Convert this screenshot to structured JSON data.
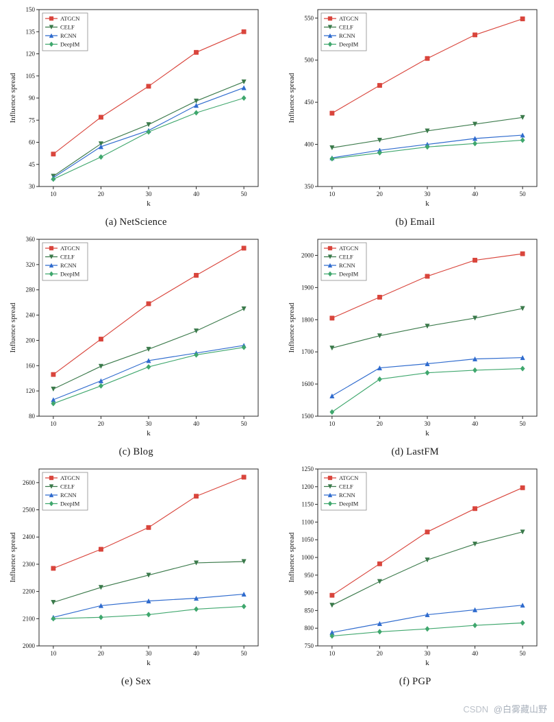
{
  "watermark": {
    "prefix": "CSDN",
    "handle": "@白雾藏山野"
  },
  "series_meta": [
    {
      "name": "ATGCN",
      "color": "#d9453c",
      "marker": "square"
    },
    {
      "name": "CELF",
      "color": "#3b7a4b",
      "marker": "triangle-down"
    },
    {
      "name": "RCNN",
      "color": "#2f6bce",
      "marker": "triangle-up"
    },
    {
      "name": "DeepIM",
      "color": "#3fa76d",
      "marker": "diamond"
    }
  ],
  "chart_data": [
    {
      "type": "line",
      "caption": "(a) NetScience",
      "xlabel": "k",
      "ylabel": "Influence spread",
      "x": [
        10,
        20,
        30,
        40,
        50
      ],
      "xlim": [
        7,
        53
      ],
      "ylim": [
        30,
        150
      ],
      "xticks": [
        10,
        20,
        30,
        40,
        50
      ],
      "yticks": [
        30,
        45,
        60,
        75,
        90,
        105,
        120,
        135,
        150
      ],
      "legend_position": "top-left",
      "grid": false,
      "series": [
        {
          "name": "ATGCN",
          "values": [
            52,
            77,
            98,
            121,
            135
          ]
        },
        {
          "name": "CELF",
          "values": [
            37,
            59,
            72,
            88,
            101
          ]
        },
        {
          "name": "RCNN",
          "values": [
            36,
            57,
            68,
            85,
            97
          ]
        },
        {
          "name": "DeepIM",
          "values": [
            35,
            50,
            67,
            80,
            90
          ]
        }
      ]
    },
    {
      "type": "line",
      "caption": "(b) Email",
      "xlabel": "k",
      "ylabel": "Influence spread",
      "x": [
        10,
        20,
        30,
        40,
        50
      ],
      "xlim": [
        7,
        53
      ],
      "ylim": [
        350,
        560
      ],
      "xticks": [
        10,
        20,
        30,
        40,
        50
      ],
      "yticks": [
        350,
        400,
        450,
        500,
        550
      ],
      "legend_position": "top-left",
      "grid": false,
      "series": [
        {
          "name": "ATGCN",
          "values": [
            437,
            470,
            502,
            530,
            549
          ]
        },
        {
          "name": "CELF",
          "values": [
            396,
            405,
            416,
            424,
            432
          ]
        },
        {
          "name": "RCNN",
          "values": [
            384,
            393,
            400,
            407,
            411
          ]
        },
        {
          "name": "DeepIM",
          "values": [
            383,
            390,
            397,
            401,
            405
          ]
        }
      ]
    },
    {
      "type": "line",
      "caption": "(c) Blog",
      "xlabel": "k",
      "ylabel": "Influence spread",
      "x": [
        10,
        20,
        30,
        40,
        50
      ],
      "xlim": [
        7,
        53
      ],
      "ylim": [
        80,
        360
      ],
      "xticks": [
        10,
        20,
        30,
        40,
        50
      ],
      "yticks": [
        80,
        120,
        160,
        200,
        240,
        280,
        320,
        360
      ],
      "legend_position": "top-left",
      "grid": false,
      "series": [
        {
          "name": "ATGCN",
          "values": [
            146,
            202,
            258,
            303,
            346
          ]
        },
        {
          "name": "CELF",
          "values": [
            123,
            159,
            186,
            215,
            250
          ]
        },
        {
          "name": "RCNN",
          "values": [
            106,
            136,
            168,
            180,
            192
          ]
        },
        {
          "name": "DeepIM",
          "values": [
            100,
            128,
            158,
            177,
            189
          ]
        }
      ]
    },
    {
      "type": "line",
      "caption": "(d) LastFM",
      "xlabel": "k",
      "ylabel": "Influence spread",
      "x": [
        10,
        20,
        30,
        40,
        50
      ],
      "xlim": [
        7,
        53
      ],
      "ylim": [
        1500,
        2050
      ],
      "xticks": [
        10,
        20,
        30,
        40,
        50
      ],
      "yticks": [
        1500,
        1600,
        1700,
        1800,
        1900,
        2000
      ],
      "legend_position": "top-left",
      "grid": false,
      "series": [
        {
          "name": "ATGCN",
          "values": [
            1805,
            1870,
            1935,
            1985,
            2005
          ]
        },
        {
          "name": "CELF",
          "values": [
            1712,
            1750,
            1780,
            1805,
            1835
          ]
        },
        {
          "name": "RCNN",
          "values": [
            1563,
            1650,
            1663,
            1678,
            1682
          ]
        },
        {
          "name": "DeepIM",
          "values": [
            1513,
            1615,
            1635,
            1643,
            1648
          ]
        }
      ]
    },
    {
      "type": "line",
      "caption": "(e) Sex",
      "xlabel": "k",
      "ylabel": "Influence spread",
      "x": [
        10,
        20,
        30,
        40,
        50
      ],
      "xlim": [
        7,
        53
      ],
      "ylim": [
        2000,
        2650
      ],
      "xticks": [
        10,
        20,
        30,
        40,
        50
      ],
      "yticks": [
        2000,
        2100,
        2200,
        2300,
        2400,
        2500,
        2600
      ],
      "legend_position": "top-left",
      "grid": false,
      "series": [
        {
          "name": "ATGCN",
          "values": [
            2285,
            2355,
            2435,
            2550,
            2620
          ]
        },
        {
          "name": "CELF",
          "values": [
            2160,
            2215,
            2260,
            2305,
            2310
          ]
        },
        {
          "name": "RCNN",
          "values": [
            2105,
            2148,
            2165,
            2175,
            2190
          ]
        },
        {
          "name": "DeepIM",
          "values": [
            2100,
            2105,
            2115,
            2135,
            2145
          ]
        }
      ]
    },
    {
      "type": "line",
      "caption": "(f) PGP",
      "xlabel": "k",
      "ylabel": "Influence spread",
      "x": [
        10,
        20,
        30,
        40,
        50
      ],
      "xlim": [
        7,
        53
      ],
      "ylim": [
        750,
        1250
      ],
      "xticks": [
        10,
        20,
        30,
        40,
        50
      ],
      "yticks": [
        750,
        800,
        850,
        900,
        950,
        1000,
        1050,
        1100,
        1150,
        1200,
        1250
      ],
      "legend_position": "top-left",
      "grid": false,
      "series": [
        {
          "name": "ATGCN",
          "values": [
            893,
            982,
            1072,
            1138,
            1197
          ]
        },
        {
          "name": "CELF",
          "values": [
            865,
            932,
            993,
            1038,
            1072
          ]
        },
        {
          "name": "RCNN",
          "values": [
            788,
            813,
            838,
            852,
            865
          ]
        },
        {
          "name": "DeepIM",
          "values": [
            778,
            790,
            798,
            808,
            815
          ]
        }
      ]
    }
  ]
}
